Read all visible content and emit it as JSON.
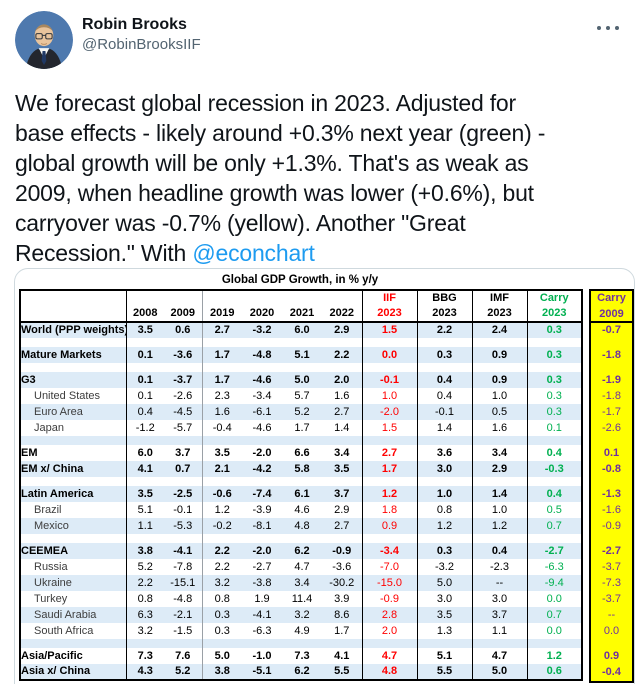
{
  "tweet": {
    "author": {
      "name": "Robin Brooks",
      "handle": "@RobinBrooksIIF"
    },
    "lines": [
      "We forecast global recession in 2023. Adjusted for",
      "base effects - likely around +0.3% next year (green) -",
      "global growth will be only +1.3%. That's as weak as",
      "2009, when headline growth was lower (+0.6%), but",
      "carryover was -0.7% (yellow). Another \"Great"
    ],
    "last_line_prefix": "Recession.\" With ",
    "mention": "@econchart"
  },
  "colors": {
    "band": "#DDEBF7",
    "red": "#FF0000",
    "green": "#00B050",
    "yellow": "#FFFF00",
    "purple": "#7030A0",
    "link": "#1d9bf0"
  },
  "table": {
    "title": "Global GDP Growth, in % y/y",
    "header": {
      "years": [
        "2008",
        "2009",
        "2019",
        "2020",
        "2021",
        "2022"
      ],
      "iif": {
        "l1": "IIF",
        "l2": "2023"
      },
      "bbg": {
        "l1": "BBG",
        "l2": "2023"
      },
      "imf": {
        "l1": "IMF",
        "l2": "2023"
      },
      "carry23": {
        "l1": "Carry",
        "l2": "2023"
      },
      "carry09": {
        "l1": "Carry",
        "l2": "2009"
      }
    },
    "columns": [
      {
        "key": "2008",
        "cls": ""
      },
      {
        "key": "2009",
        "cls": "b-gray"
      },
      {
        "key": "2019",
        "cls": ""
      },
      {
        "key": "2020",
        "cls": ""
      },
      {
        "key": "2021",
        "cls": ""
      },
      {
        "key": "2022",
        "cls": "b-black"
      },
      {
        "key": "iif-2023",
        "cls": "c-iif b-black"
      },
      {
        "key": "bbg-2023",
        "cls": "b-black"
      },
      {
        "key": "imf-2023",
        "cls": "b-black"
      },
      {
        "key": "carry-2023",
        "cls": "c-carry"
      }
    ],
    "rows": [
      {
        "type": "data",
        "label": "World (PPP weights)",
        "bold": true,
        "indent": false,
        "values": [
          "3.5",
          "0.6",
          "2.7",
          "-3.2",
          "6.0",
          "2.9",
          "1.5",
          "2.2",
          "2.4",
          "0.3"
        ],
        "carry09": "-0.7"
      },
      {
        "type": "blank",
        "carry09": ""
      },
      {
        "type": "data",
        "label": "Mature Markets",
        "bold": true,
        "indent": false,
        "values": [
          "0.1",
          "-3.6",
          "1.7",
          "-4.8",
          "5.1",
          "2.2",
          "0.0",
          "0.3",
          "0.9",
          "0.3"
        ],
        "carry09": "-1.8"
      },
      {
        "type": "blank",
        "carry09": ""
      },
      {
        "type": "data",
        "label": "G3",
        "bold": true,
        "indent": false,
        "values": [
          "0.1",
          "-3.7",
          "1.7",
          "-4.6",
          "5.0",
          "2.0",
          "-0.1",
          "0.4",
          "0.9",
          "0.3"
        ],
        "carry09": "-1.9"
      },
      {
        "type": "data",
        "label": "United States",
        "bold": false,
        "indent": true,
        "values": [
          "0.1",
          "-2.6",
          "2.3",
          "-3.4",
          "5.7",
          "1.6",
          "1.0",
          "0.4",
          "1.0",
          "0.3"
        ],
        "carry09": "-1.8"
      },
      {
        "type": "data",
        "label": "Euro Area",
        "bold": false,
        "indent": true,
        "values": [
          "0.4",
          "-4.5",
          "1.6",
          "-6.1",
          "5.2",
          "2.7",
          "-2.0",
          "-0.1",
          "0.5",
          "0.3"
        ],
        "carry09": "-1.7"
      },
      {
        "type": "data",
        "label": "Japan",
        "bold": false,
        "indent": true,
        "values": [
          "-1.2",
          "-5.7",
          "-0.4",
          "-4.6",
          "1.7",
          "1.4",
          "1.5",
          "1.4",
          "1.6",
          "0.1"
        ],
        "carry09": "-2.6"
      },
      {
        "type": "blank",
        "carry09": ""
      },
      {
        "type": "data",
        "label": "EM",
        "bold": true,
        "indent": false,
        "values": [
          "6.0",
          "3.7",
          "3.5",
          "-2.0",
          "6.6",
          "3.4",
          "2.7",
          "3.6",
          "3.4",
          "0.4"
        ],
        "carry09": "0.1"
      },
      {
        "type": "data",
        "label": "EM x/ China",
        "bold": true,
        "indent": false,
        "values": [
          "4.1",
          "0.7",
          "2.1",
          "-4.2",
          "5.8",
          "3.5",
          "1.7",
          "3.0",
          "2.9",
          "-0.3"
        ],
        "carry09": "-0.8"
      },
      {
        "type": "blank",
        "carry09": ""
      },
      {
        "type": "data",
        "label": "Latin America",
        "bold": true,
        "indent": false,
        "values": [
          "3.5",
          "-2.5",
          "-0.6",
          "-7.4",
          "6.1",
          "3.7",
          "1.2",
          "1.0",
          "1.4",
          "0.4"
        ],
        "carry09": "-1.3"
      },
      {
        "type": "data",
        "label": "Brazil",
        "bold": false,
        "indent": true,
        "values": [
          "5.1",
          "-0.1",
          "1.2",
          "-3.9",
          "4.6",
          "2.9",
          "1.8",
          "0.8",
          "1.0",
          "0.5"
        ],
        "carry09": "-1.6"
      },
      {
        "type": "data",
        "label": "Mexico",
        "bold": false,
        "indent": true,
        "values": [
          "1.1",
          "-5.3",
          "-0.2",
          "-8.1",
          "4.8",
          "2.7",
          "0.9",
          "1.2",
          "1.2",
          "0.7"
        ],
        "carry09": "-0.9"
      },
      {
        "type": "blank",
        "carry09": ""
      },
      {
        "type": "data",
        "label": "CEEMEA",
        "bold": true,
        "indent": false,
        "values": [
          "3.8",
          "-4.1",
          "2.2",
          "-2.0",
          "6.2",
          "-0.9",
          "-3.4",
          "0.3",
          "0.4",
          "-2.7"
        ],
        "carry09": "-2.7"
      },
      {
        "type": "data",
        "label": "Russia",
        "bold": false,
        "indent": true,
        "values": [
          "5.2",
          "-7.8",
          "2.2",
          "-2.7",
          "4.7",
          "-3.6",
          "-7.0",
          "-3.2",
          "-2.3",
          "-6.3"
        ],
        "carry09": "-3.7"
      },
      {
        "type": "data",
        "label": "Ukraine",
        "bold": false,
        "indent": true,
        "values": [
          "2.2",
          "-15.1",
          "3.2",
          "-3.8",
          "3.4",
          "-30.2",
          "-15.0",
          "5.0",
          "--",
          "-9.4"
        ],
        "carry09": "-7.3"
      },
      {
        "type": "data",
        "label": "Turkey",
        "bold": false,
        "indent": true,
        "values": [
          "0.8",
          "-4.8",
          "0.8",
          "1.9",
          "11.4",
          "3.9",
          "-0.9",
          "3.0",
          "3.0",
          "0.0"
        ],
        "carry09": "-3.7"
      },
      {
        "type": "data",
        "label": "Saudi Arabia",
        "bold": false,
        "indent": true,
        "values": [
          "6.3",
          "-2.1",
          "0.3",
          "-4.1",
          "3.2",
          "8.6",
          "2.8",
          "3.5",
          "3.7",
          "0.7"
        ],
        "carry09": "--"
      },
      {
        "type": "data",
        "label": "South Africa",
        "bold": false,
        "indent": true,
        "values": [
          "3.2",
          "-1.5",
          "0.3",
          "-6.3",
          "4.9",
          "1.7",
          "2.0",
          "1.3",
          "1.1",
          "0.0"
        ],
        "carry09": "0.0"
      },
      {
        "type": "blank",
        "carry09": ""
      },
      {
        "type": "data",
        "label": "Asia/Pacific",
        "bold": true,
        "indent": false,
        "values": [
          "7.3",
          "7.6",
          "5.0",
          "-1.0",
          "7.3",
          "4.1",
          "4.7",
          "5.1",
          "4.7",
          "1.2"
        ],
        "carry09": "0.9"
      },
      {
        "type": "data",
        "label": "Asia x/ China",
        "bold": true,
        "indent": false,
        "values": [
          "4.3",
          "5.2",
          "3.8",
          "-5.1",
          "6.2",
          "5.5",
          "4.8",
          "5.5",
          "5.0",
          "0.6"
        ],
        "carry09": "-0.4"
      }
    ]
  }
}
